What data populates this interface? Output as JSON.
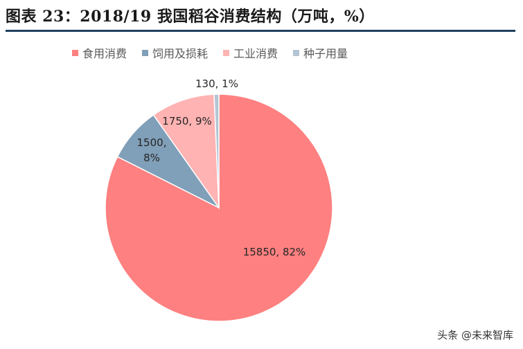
{
  "header": {
    "title": "图表 23：2018/19 我国稻谷消费结构（万吨，%）"
  },
  "chart_data": {
    "type": "pie",
    "title": "图表 23：2018/19 我国稻谷消费结构（万吨，%）",
    "categories": [
      "食用消费",
      "饲用及损耗",
      "工业消费",
      "种子用量"
    ],
    "values": [
      15850,
      1500,
      1750,
      130
    ],
    "percents": [
      "82%",
      "8%",
      "9%",
      "1%"
    ],
    "labels": [
      "15850, 82%",
      "1500,\n8%",
      "1750, 9%",
      "130, 1%"
    ],
    "colors": [
      "#fe8080",
      "#809fb8",
      "#ffb3b3",
      "#b3c5d4"
    ],
    "legend_position": "top"
  },
  "watermark": {
    "text": "头条 @未来智库"
  }
}
